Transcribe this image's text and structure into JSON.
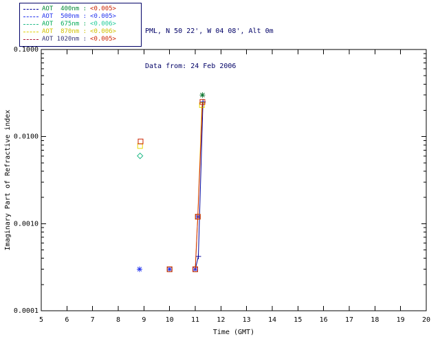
{
  "header": {
    "line1": "PML, N 50 22', W 04 08', Alt 0m",
    "line2": "Data from: 24 Feb 2006"
  },
  "legend": {
    "rows": [
      {
        "label": "AOT  400nm :",
        "value": "<0.005>",
        "line_color": "#000099",
        "label_color": "#008833",
        "value_color": "#cc2200"
      },
      {
        "label": "AOT  500nm :",
        "value": "<0.005>",
        "line_color": "#2233ee",
        "label_color": "#2233ee",
        "value_color": "#2233ee"
      },
      {
        "label": "AOT  675nm :",
        "value": "<0.006>",
        "line_color": "#22bb88",
        "label_color": "#00aa55",
        "value_color": "#22cc99"
      },
      {
        "label": "AOT  870nm :",
        "value": "<0.006>",
        "line_color": "#e0d000",
        "label_color": "#d0c000",
        "value_color": "#d0c000"
      },
      {
        "label": "AOT 1020nm :",
        "value": "<0.005>",
        "line_color": "#aa1133",
        "label_color": "#333377",
        "value_color": "#cc2200"
      }
    ]
  },
  "chart_data": {
    "type": "line",
    "title": "PML, N 50 22', W 04 08', Alt 0m — Data from: 24 Feb 2006",
    "xlabel": "Time (GMT)",
    "ylabel": "Imaginary Part of Refractive index",
    "xlim": [
      5,
      20
    ],
    "x_ticks": [
      5,
      6,
      7,
      8,
      9,
      10,
      11,
      12,
      13,
      14,
      15,
      16,
      17,
      18,
      19,
      20
    ],
    "y_scale": "log",
    "ylim": [
      0.0001,
      0.1
    ],
    "y_ticks": [
      {
        "v": 0.1,
        "label": "0.1000"
      },
      {
        "v": 0.01,
        "label": "0.0100"
      },
      {
        "v": 0.001,
        "label": "0.0010"
      },
      {
        "v": 0.0001,
        "label": "0.0001"
      }
    ],
    "grid": false,
    "legend_position": "outside-top-left",
    "series": [
      {
        "name": "AOT 400nm",
        "mean_aot": "<0.005>",
        "color": "#000099",
        "marker": "plus",
        "line": [
          [
            11.0,
            0.0003
          ],
          [
            11.12,
            0.00042
          ],
          [
            11.3,
            0.025
          ]
        ],
        "points": [
          [
            11.12,
            0.00042
          ],
          [
            11.3,
            0.025
          ]
        ]
      },
      {
        "name": "AOT 500nm",
        "mean_aot": "<0.005>",
        "color": "#2233ee",
        "marker": "asterisk",
        "line": [],
        "points": [
          [
            8.83,
            0.0003
          ],
          [
            10.0,
            0.0003
          ],
          [
            11.0,
            0.0003
          ],
          [
            11.1,
            0.0012
          ]
        ]
      },
      {
        "name": "AOT 675nm",
        "mean_aot": "<0.006>",
        "color": "#22bb88",
        "marker": "diamond",
        "line": [],
        "points": [
          [
            8.85,
            0.006
          ],
          {
            "x": 11.28,
            "y": 0.03,
            "m": "asterisk",
            "c": "#117733"
          }
        ]
      },
      {
        "name": "AOT 870nm",
        "mean_aot": "<0.006>",
        "color": "#e8d800",
        "marker": "square",
        "line": [
          [
            11.0,
            0.0003
          ],
          [
            11.1,
            0.0012
          ],
          [
            11.26,
            0.023
          ]
        ],
        "points": [
          [
            8.85,
            0.0078
          ],
          [
            10.0,
            0.0003
          ],
          [
            11.0,
            0.0003
          ],
          [
            11.1,
            0.0012
          ],
          [
            11.26,
            0.023
          ]
        ]
      },
      {
        "name": "AOT 1020nm",
        "mean_aot": "<0.005>",
        "color": "#cc2200",
        "marker": "square",
        "line": [
          [
            11.0,
            0.0003
          ],
          [
            11.1,
            0.0012
          ],
          [
            11.28,
            0.025
          ]
        ],
        "points": [
          [
            8.87,
            0.0088
          ],
          [
            10.0,
            0.0003
          ],
          [
            11.0,
            0.0003
          ],
          [
            11.1,
            0.0012
          ],
          [
            11.28,
            0.025
          ]
        ]
      }
    ]
  }
}
